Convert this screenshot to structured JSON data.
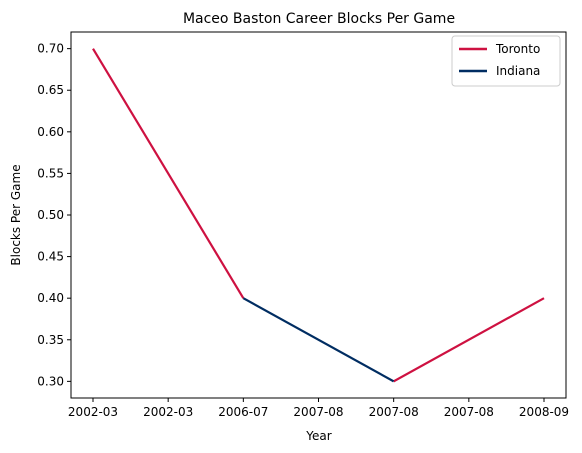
{
  "chart_data": {
    "type": "line",
    "title": "Maceo Baston Career Blocks Per Game",
    "xlabel": "Year",
    "ylabel": "Blocks Per Game",
    "x_ticks": [
      "2002-03",
      "2002-03",
      "2006-07",
      "2007-08",
      "2007-08",
      "2007-08",
      "2008-09"
    ],
    "y_ticks": [
      "0.30",
      "0.35",
      "0.40",
      "0.45",
      "0.50",
      "0.55",
      "0.60",
      "0.65",
      "0.70"
    ],
    "ylim": [
      0.28,
      0.72
    ],
    "grid": false,
    "legend_position": "upper-right",
    "series": [
      {
        "name": "Toronto",
        "color": "#ce1141",
        "segments": [
          {
            "x": [
              "2002-03",
              "2006-07"
            ],
            "y": [
              0.7,
              0.4
            ]
          },
          {
            "x": [
              "2007-08",
              "2008-09"
            ],
            "y": [
              0.3,
              0.4
            ]
          }
        ]
      },
      {
        "name": "Indiana",
        "color": "#002d62",
        "segments": [
          {
            "x": [
              "2006-07",
              "2007-08"
            ],
            "y": [
              0.4,
              0.3
            ]
          }
        ]
      }
    ]
  }
}
